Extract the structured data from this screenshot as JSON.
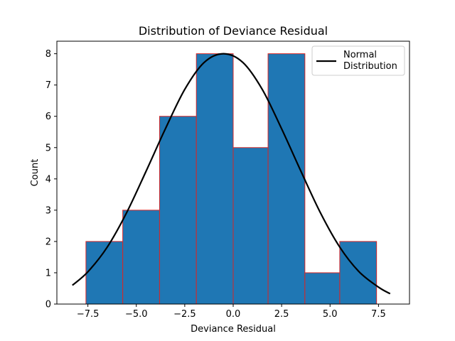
{
  "chart_data": {
    "type": "bar",
    "subtype": "histogram",
    "title": "Distribution of Deviance Residual",
    "xlabel": "Deviance Residual",
    "ylabel": "Count",
    "xlim": [
      -9.1,
      9.1
    ],
    "ylim": [
      0,
      8.4
    ],
    "xticks": [
      -7.5,
      -5.0,
      -2.5,
      0.0,
      2.5,
      5.0,
      7.5
    ],
    "xtick_labels": [
      "−7.5",
      "−5.0",
      "−2.5",
      "0.0",
      "2.5",
      "5.0",
      "7.5"
    ],
    "yticks": [
      0,
      1,
      2,
      3,
      4,
      5,
      6,
      7,
      8
    ],
    "ytick_labels": [
      "0",
      "1",
      "2",
      "3",
      "4",
      "5",
      "6",
      "7",
      "8"
    ],
    "bins": [
      {
        "x0": -7.6,
        "x1": -5.7,
        "count": 2
      },
      {
        "x0": -5.7,
        "x1": -3.8,
        "count": 3
      },
      {
        "x0": -3.8,
        "x1": -1.9,
        "count": 6
      },
      {
        "x0": -1.9,
        "x1": 0.0,
        "count": 8
      },
      {
        "x0": 0.0,
        "x1": 1.8,
        "count": 5
      },
      {
        "x0": 1.8,
        "x1": 3.7,
        "count": 8
      },
      {
        "x0": 3.7,
        "x1": 5.5,
        "count": 1
      },
      {
        "x0": 5.5,
        "x1": 7.4,
        "count": 2
      }
    ],
    "bar_color": "#1f77b4",
    "bar_edge_color": "#d62728",
    "curve": {
      "name": "Normal\nDistribution",
      "legend_lines": [
        "Normal",
        "Distribution"
      ],
      "type": "line",
      "color": "#000000",
      "x": [
        -8.3,
        -7.5,
        -6.5,
        -5.5,
        -4.5,
        -3.5,
        -2.5,
        -1.5,
        -0.5,
        0.5,
        1.5,
        2.5,
        3.5,
        4.5,
        5.5,
        6.5,
        7.5,
        8.1
      ],
      "y": [
        0.6,
        1.03,
        1.82,
        2.92,
        4.24,
        5.6,
        6.86,
        7.72,
        8.0,
        7.72,
        6.86,
        5.6,
        4.24,
        2.92,
        1.82,
        1.03,
        0.54,
        0.33
      ]
    },
    "legend_position": "top-right",
    "grid": false
  }
}
